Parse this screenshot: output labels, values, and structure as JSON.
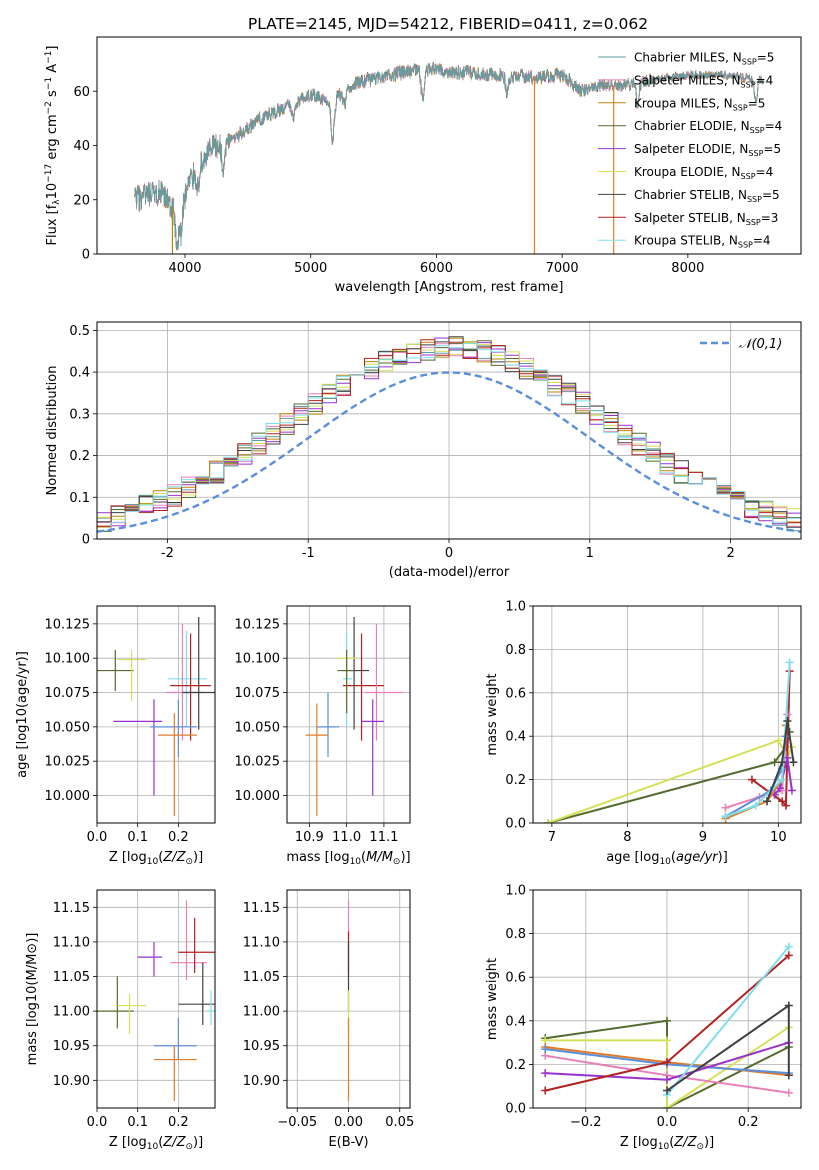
{
  "figure": {
    "title": "PLATE=2145, MJD=54212, FIBERID=0411, z=0.062"
  },
  "models": [
    {
      "name": "Chabrier MILES",
      "nssp": "5",
      "color": "#5f9ea0"
    },
    {
      "name": "Salpeter MILES",
      "nssp": "4",
      "color": "#e87fb8"
    },
    {
      "name": "Kroupa MILES",
      "nssp": "5",
      "color": "#b8860b"
    },
    {
      "name": "Chabrier ELODIE",
      "nssp": "4",
      "color": "#556b2f"
    },
    {
      "name": "Salpeter ELODIE",
      "nssp": "5",
      "color": "#9932cc"
    },
    {
      "name": "Kroupa ELODIE",
      "nssp": "4",
      "color": "#d4e157"
    },
    {
      "name": "Chabrier STELIB",
      "nssp": "5",
      "color": "#404040"
    },
    {
      "name": "Salpeter STELIB",
      "nssp": "3",
      "color": "#b22222"
    },
    {
      "name": "Kroupa STELIB",
      "nssp": "4",
      "color": "#80deea"
    }
  ],
  "chart_data": [
    {
      "id": "spectrum",
      "type": "line",
      "xlabel": "wavelength [Angstrom, rest frame]",
      "ylabel": "Flux [f_λ10^-17 erg cm^-2 s^-1 A^-1]",
      "xlim": [
        3300,
        8900
      ],
      "ylim": [
        0,
        80
      ],
      "xticks": [
        4000,
        5000,
        6000,
        7000,
        8000
      ],
      "yticks": [
        0,
        20,
        40,
        60
      ],
      "legend": "top-right",
      "continuum": [
        [
          3600,
          20
        ],
        [
          3800,
          22
        ],
        [
          3950,
          15
        ],
        [
          4050,
          28
        ],
        [
          4200,
          38
        ],
        [
          4400,
          43
        ],
        [
          4600,
          50
        ],
        [
          4800,
          54
        ],
        [
          5000,
          59
        ],
        [
          5150,
          55
        ],
        [
          5300,
          62
        ],
        [
          5600,
          66
        ],
        [
          5900,
          68
        ],
        [
          6200,
          67
        ],
        [
          6500,
          66
        ],
        [
          6800,
          65
        ],
        [
          7000,
          66
        ],
        [
          7150,
          60
        ],
        [
          7300,
          62
        ],
        [
          7450,
          62
        ],
        [
          7700,
          64
        ],
        [
          8000,
          66
        ],
        [
          8300,
          66
        ],
        [
          8600,
          64
        ]
      ],
      "absorption_features": [
        [
          3933,
          12
        ],
        [
          3968,
          10
        ],
        [
          4102,
          6
        ],
        [
          4304,
          10
        ],
        [
          4861,
          5
        ],
        [
          5175,
          14
        ],
        [
          5270,
          6
        ],
        [
          5890,
          10
        ],
        [
          6563,
          6
        ],
        [
          7600,
          8
        ],
        [
          8540,
          8
        ],
        [
          8660,
          8
        ]
      ],
      "dropouts": [
        3900,
        6780,
        7410
      ]
    },
    {
      "id": "residual-histogram",
      "type": "histogram",
      "xlabel": "(data-model)/error",
      "ylabel": "Normed distribution",
      "xlim": [
        -2.5,
        2.5
      ],
      "ylim": [
        0,
        0.52
      ],
      "xticks": [
        -2,
        -1,
        0,
        1,
        2
      ],
      "yticks": [
        0.0,
        0.1,
        0.2,
        0.3,
        0.4,
        0.5
      ],
      "grid": true,
      "legend": "top-right",
      "reference": {
        "label": "𝒩(0,1)",
        "mean": 0,
        "sigma": 1,
        "color": "#5b8fd9"
      }
    },
    {
      "id": "z-age",
      "type": "scatter-errorbar",
      "xlabel": "Z [log10(Z/Z⊙)]",
      "ylabel": "age  [log10(age/yr)]",
      "xlim": [
        0.0,
        0.29
      ],
      "ylim": [
        9.98,
        10.138
      ],
      "xticks": [
        "0.0",
        "0.1",
        "0.2"
      ],
      "yticks": [
        "10.000",
        "10.025",
        "10.050",
        "10.075",
        "10.100",
        "10.125"
      ],
      "grid": true
    },
    {
      "id": "mass-age",
      "type": "scatter-errorbar",
      "xlabel": "mass [log10(M/M⊙)]",
      "ylabel": "",
      "xlim": [
        10.84,
        11.17
      ],
      "ylim": [
        9.98,
        10.138
      ],
      "xticks": [
        "10.9",
        "11.0",
        "11.1"
      ],
      "yticks": [
        "10.000",
        "10.025",
        "10.050",
        "10.075",
        "10.100",
        "10.125"
      ],
      "grid": true
    },
    {
      "id": "age-weight",
      "type": "line",
      "xlabel": "age  [log10(age/yr)]",
      "ylabel": "mass weight",
      "xlim": [
        6.75,
        10.3
      ],
      "ylim": [
        0,
        1.0
      ],
      "xticks": [
        "7",
        "8",
        "9",
        "10"
      ],
      "yticks": [
        "0.0",
        "0.2",
        "0.4",
        "0.6",
        "0.8",
        "1.0"
      ],
      "grid": true
    },
    {
      "id": "z-mass",
      "type": "scatter-errorbar",
      "xlabel": "Z [log10(Z/Z⊙)]",
      "ylabel": "mass [log10(M/M⊙)]",
      "xlim": [
        0.0,
        0.29
      ],
      "ylim": [
        10.86,
        11.175
      ],
      "xticks": [
        "0.0",
        "0.1",
        "0.2"
      ],
      "yticks": [
        "10.90",
        "10.95",
        "11.00",
        "11.05",
        "11.10",
        "11.15"
      ],
      "grid": true
    },
    {
      "id": "ebv-mass",
      "type": "scatter-errorbar",
      "xlabel": "E(B-V)",
      "ylabel": "",
      "xlim": [
        -0.06,
        0.06
      ],
      "ylim": [
        10.86,
        11.175
      ],
      "xticks": [
        "−0.05",
        "0.00",
        "0.05"
      ],
      "yticks": [
        "10.90",
        "10.95",
        "11.00",
        "11.05",
        "11.10",
        "11.15"
      ],
      "grid": true
    },
    {
      "id": "z-weight",
      "type": "line",
      "xlabel": "Z [log10(Z/Z⊙)]",
      "ylabel": "mass weight",
      "xlim": [
        -0.33,
        0.33
      ],
      "ylim": [
        0,
        1.0
      ],
      "xticks": [
        "−0.2",
        "0.0",
        "0.2"
      ],
      "yticks": [
        "0.0",
        "0.2",
        "0.4",
        "0.6",
        "0.8",
        "1.0"
      ],
      "grid": true
    }
  ],
  "points": {
    "z_age": [
      {
        "m": 6,
        "z": 0.22,
        "zlo": 0.175,
        "zhi": 0.27,
        "v": 10.085,
        "vlo": 10.05,
        "vhi": 10.12,
        "c": "#80deea"
      },
      {
        "m": 1,
        "z": 0.21,
        "zlo": 0.17,
        "zhi": 0.26,
        "v": 10.075,
        "vlo": 10.04,
        "vhi": 10.125,
        "c": "#e87fb8"
      },
      {
        "m": 7,
        "z": 0.23,
        "zlo": 0.18,
        "zhi": 0.28,
        "v": 10.08,
        "vlo": 10.04,
        "vhi": 10.118,
        "c": "#b22222"
      },
      {
        "m": 8,
        "z": 0.25,
        "zlo": 0.21,
        "zhi": 0.29,
        "v": 10.075,
        "vlo": 10.048,
        "vhi": 10.13,
        "c": "#404040"
      },
      {
        "m": 3,
        "z": 0.045,
        "zlo": 0.0,
        "zhi": 0.09,
        "v": 10.091,
        "vlo": 10.076,
        "vhi": 10.106,
        "c": "#556b2f"
      },
      {
        "m": 5,
        "z": 0.085,
        "zlo": 0.05,
        "zhi": 0.12,
        "v": 10.099,
        "vlo": 10.069,
        "vhi": 10.106,
        "c": "#d4e157"
      },
      {
        "m": 4,
        "z": 0.14,
        "zlo": 0.04,
        "zhi": 0.16,
        "v": 10.054,
        "vlo": 10.0,
        "vhi": 10.07,
        "c": "#9932cc"
      },
      {
        "m": 0,
        "z": 0.2,
        "zlo": 0.13,
        "zhi": 0.245,
        "v": 10.05,
        "vlo": 10.028,
        "vhi": 10.07,
        "c": "#5b8fd9"
      },
      {
        "m": 2,
        "z": 0.19,
        "zlo": 0.15,
        "zhi": 0.245,
        "v": 10.044,
        "vlo": 9.985,
        "vhi": 10.06,
        "c": "#e07b2a"
      }
    ],
    "mass_age": [
      {
        "x": 11.04,
        "xlo": 10.99,
        "xhi": 11.1,
        "v": 10.08,
        "vlo": 10.04,
        "vhi": 10.118,
        "c": "#b22222"
      },
      {
        "x": 11.0,
        "xlo": 10.99,
        "xhi": 11.015,
        "v": 10.085,
        "vlo": 10.05,
        "vhi": 10.12,
        "c": "#80deea"
      },
      {
        "x": 11.08,
        "xlo": 11.05,
        "xhi": 11.15,
        "v": 10.075,
        "vlo": 10.04,
        "vhi": 10.125,
        "c": "#e87fb8"
      },
      {
        "x": 11.02,
        "xlo": 10.99,
        "xhi": 11.06,
        "v": 10.091,
        "vlo": 10.048,
        "vhi": 10.13,
        "c": "#404040"
      },
      {
        "x": 11.0,
        "xlo": 10.975,
        "xhi": 11.03,
        "v": 10.1,
        "vlo": 10.069,
        "vhi": 10.106,
        "c": "#d4e157"
      },
      {
        "x": 11.0,
        "xlo": 10.975,
        "xhi": 11.02,
        "v": 10.091,
        "vlo": 10.06,
        "vhi": 10.106,
        "c": "#556b2f"
      },
      {
        "x": 11.07,
        "xlo": 11.04,
        "xhi": 11.1,
        "v": 10.054,
        "vlo": 10.0,
        "vhi": 10.07,
        "c": "#9932cc"
      },
      {
        "x": 10.95,
        "xlo": 10.92,
        "xhi": 10.98,
        "v": 10.05,
        "vlo": 10.028,
        "vhi": 10.075,
        "c": "#5b8fd9"
      },
      {
        "x": 10.92,
        "xlo": 10.89,
        "xhi": 10.95,
        "v": 10.044,
        "vlo": 9.985,
        "vhi": 10.067,
        "c": "#e07b2a"
      }
    ],
    "z_mass": [
      {
        "z": 0.05,
        "zlo": 0.0,
        "zhi": 0.09,
        "v": 11.0,
        "vlo": 10.975,
        "vhi": 11.05,
        "c": "#556b2f"
      },
      {
        "z": 0.08,
        "zlo": 0.05,
        "zhi": 0.12,
        "v": 11.008,
        "vlo": 10.967,
        "vhi": 11.025,
        "c": "#d4e157"
      },
      {
        "z": 0.14,
        "zlo": 0.1,
        "zhi": 0.16,
        "v": 11.078,
        "vlo": 11.05,
        "vhi": 11.1,
        "c": "#9932cc"
      },
      {
        "z": 0.22,
        "zlo": 0.18,
        "zhi": 0.27,
        "v": 11.07,
        "vlo": 11.045,
        "vhi": 11.16,
        "c": "#e87fb8"
      },
      {
        "z": 0.24,
        "zlo": 0.2,
        "zhi": 0.29,
        "v": 11.085,
        "vlo": 11.055,
        "vhi": 11.135,
        "c": "#b22222"
      },
      {
        "z": 0.26,
        "zlo": 0.2,
        "zhi": 0.29,
        "v": 11.01,
        "vlo": 10.98,
        "vhi": 11.07,
        "c": "#404040"
      },
      {
        "z": 0.28,
        "zlo": 0.27,
        "zhi": 0.29,
        "v": 11.0,
        "vlo": 10.98,
        "vhi": 11.03,
        "c": "#80deea"
      },
      {
        "z": 0.2,
        "zlo": 0.14,
        "zhi": 0.245,
        "v": 10.95,
        "vlo": 10.93,
        "vhi": 10.99,
        "c": "#5b8fd9"
      },
      {
        "z": 0.19,
        "zlo": 0.14,
        "zhi": 0.245,
        "v": 10.93,
        "vlo": 10.87,
        "vhi": 10.95,
        "c": "#e07b2a"
      }
    ],
    "ebv_mass": [
      {
        "v": 11.08,
        "vlo": 11.05,
        "vhi": 11.16,
        "c": "#e87fb8"
      },
      {
        "v": 11.085,
        "vlo": 11.055,
        "vhi": 11.115,
        "c": "#b22222"
      },
      {
        "v": 11.05,
        "vlo": 11.0,
        "vhi": 11.1,
        "c": "#404040"
      },
      {
        "v": 11.0,
        "vlo": 10.96,
        "vhi": 11.03,
        "c": "#d4e157"
      },
      {
        "v": 10.93,
        "vlo": 10.87,
        "vhi": 10.99,
        "c": "#e07b2a"
      }
    ]
  },
  "weights_age": [
    {
      "c": "#556b2f",
      "pts": [
        [
          6.95,
          0.0
        ],
        [
          9.95,
          0.28
        ],
        [
          10.1,
          0.35
        ],
        [
          10.15,
          0.42
        ]
      ]
    },
    {
      "c": "#d4e157",
      "pts": [
        [
          6.95,
          0.0
        ],
        [
          10.0,
          0.38
        ],
        [
          10.12,
          0.3
        ],
        [
          10.18,
          0.35
        ]
      ]
    },
    {
      "c": "#b22222",
      "pts": [
        [
          9.65,
          0.2
        ],
        [
          10.05,
          0.1
        ],
        [
          10.1,
          0.08
        ],
        [
          10.15,
          0.7
        ]
      ]
    },
    {
      "c": "#e87fb8",
      "pts": [
        [
          9.3,
          0.07
        ],
        [
          9.75,
          0.12
        ],
        [
          10.05,
          0.15
        ],
        [
          10.12,
          0.5
        ]
      ]
    },
    {
      "c": "#9932cc",
      "pts": [
        [
          9.95,
          0.13
        ],
        [
          10.02,
          0.16
        ],
        [
          10.12,
          0.3
        ],
        [
          10.18,
          0.15
        ]
      ]
    },
    {
      "c": "#e07b2a",
      "pts": [
        [
          9.3,
          0.02
        ],
        [
          9.85,
          0.1
        ],
        [
          10.05,
          0.2
        ],
        [
          10.1,
          0.45
        ]
      ]
    },
    {
      "c": "#5b8fd9",
      "pts": [
        [
          9.3,
          0.03
        ],
        [
          9.9,
          0.15
        ],
        [
          10.05,
          0.25
        ],
        [
          10.1,
          0.4
        ]
      ]
    },
    {
      "c": "#80deea",
      "pts": [
        [
          9.3,
          0.03
        ],
        [
          9.7,
          0.08
        ],
        [
          10.05,
          0.2
        ],
        [
          10.15,
          0.74
        ]
      ]
    },
    {
      "c": "#404040",
      "pts": [
        [
          9.85,
          0.1
        ],
        [
          10.05,
          0.28
        ],
        [
          10.12,
          0.47
        ],
        [
          10.2,
          0.28
        ]
      ]
    }
  ],
  "weights_z": [
    {
      "c": "#556b2f",
      "pts": [
        [
          -0.3,
          0.32
        ],
        [
          0.0,
          0.4
        ],
        [
          0.0,
          0.0
        ],
        [
          0.3,
          0.28
        ]
      ]
    },
    {
      "c": "#d4e157",
      "pts": [
        [
          -0.3,
          0.31
        ],
        [
          0.0,
          0.31
        ],
        [
          0.0,
          0.0
        ],
        [
          0.3,
          0.37
        ]
      ]
    },
    {
      "c": "#e07b2a",
      "pts": [
        [
          -0.3,
          0.28
        ],
        [
          0.0,
          0.21
        ],
        [
          0.3,
          0.15
        ]
      ]
    },
    {
      "c": "#e87fb8",
      "pts": [
        [
          -0.3,
          0.24
        ],
        [
          0.0,
          0.15
        ],
        [
          0.3,
          0.07
        ]
      ]
    },
    {
      "c": "#5b8fd9",
      "pts": [
        [
          -0.3,
          0.27
        ],
        [
          0.0,
          0.2
        ],
        [
          0.3,
          0.16
        ]
      ]
    },
    {
      "c": "#9932cc",
      "pts": [
        [
          -0.3,
          0.16
        ],
        [
          0.0,
          0.13
        ],
        [
          0.3,
          0.3
        ]
      ]
    },
    {
      "c": "#b22222",
      "pts": [
        [
          -0.3,
          0.08
        ],
        [
          0.0,
          0.21
        ],
        [
          0.3,
          0.7
        ]
      ]
    },
    {
      "c": "#80deea",
      "pts": [
        [
          0.0,
          0.06
        ],
        [
          0.3,
          0.74
        ]
      ]
    },
    {
      "c": "#404040",
      "pts": [
        [
          0.0,
          0.08
        ],
        [
          0.3,
          0.47
        ],
        [
          0.3,
          0.15
        ]
      ]
    }
  ]
}
